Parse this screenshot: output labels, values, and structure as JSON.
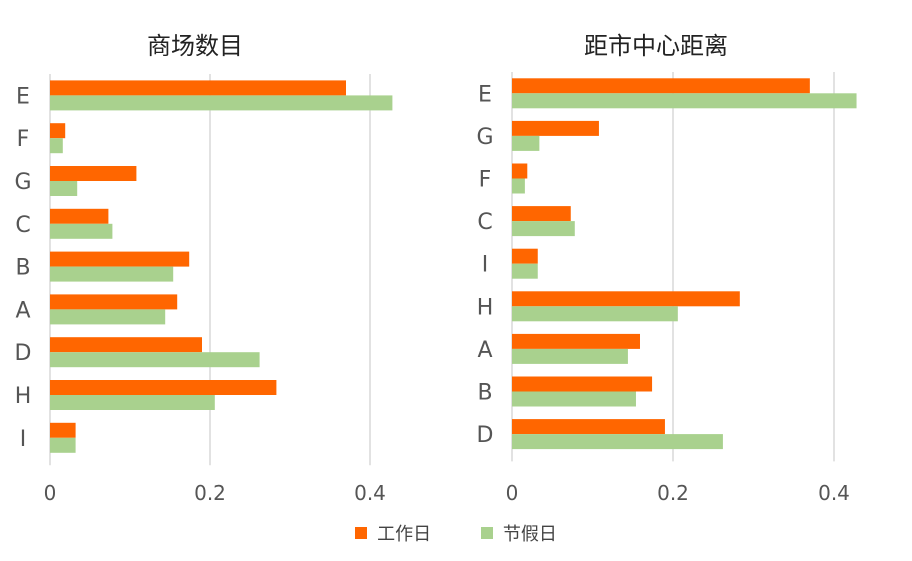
{
  "colors": {
    "workday": "#FF6600",
    "holiday": "#A9D18E",
    "grid": "#D9D9D9",
    "text": "#555555"
  },
  "legend": {
    "workday_label": "工作日",
    "holiday_label": "节假日"
  },
  "chart_data": [
    {
      "type": "bar",
      "orientation": "horizontal",
      "title": "商场数目",
      "categories": [
        "E",
        "F",
        "G",
        "C",
        "B",
        "A",
        "D",
        "H",
        "I"
      ],
      "series": [
        {
          "name": "工作日",
          "values": [
            0.37,
            0.019,
            0.108,
            0.073,
            0.174,
            0.159,
            0.19,
            0.283,
            0.032
          ]
        },
        {
          "name": "节假日",
          "values": [
            0.428,
            0.016,
            0.034,
            0.078,
            0.154,
            0.144,
            0.262,
            0.206,
            0.032
          ]
        }
      ],
      "xlim": [
        0,
        0.45
      ],
      "xticks": [
        0,
        0.2,
        0.4
      ],
      "xtick_labels": [
        "0",
        "0.2",
        "0.4"
      ],
      "grid": true
    },
    {
      "type": "bar",
      "orientation": "horizontal",
      "title": "距市中心距离",
      "categories": [
        "E",
        "G",
        "F",
        "C",
        "I",
        "H",
        "A",
        "B",
        "D"
      ],
      "series": [
        {
          "name": "工作日",
          "values": [
            0.37,
            0.108,
            0.019,
            0.073,
            0.032,
            0.283,
            0.159,
            0.174,
            0.19
          ]
        },
        {
          "name": "节假日",
          "values": [
            0.428,
            0.034,
            0.016,
            0.078,
            0.032,
            0.206,
            0.144,
            0.154,
            0.262
          ]
        }
      ],
      "xlim": [
        0,
        0.45
      ],
      "xticks": [
        0,
        0.2,
        0.4
      ],
      "xtick_labels": [
        "0",
        "0.2",
        "0.4"
      ],
      "grid": true
    }
  ]
}
